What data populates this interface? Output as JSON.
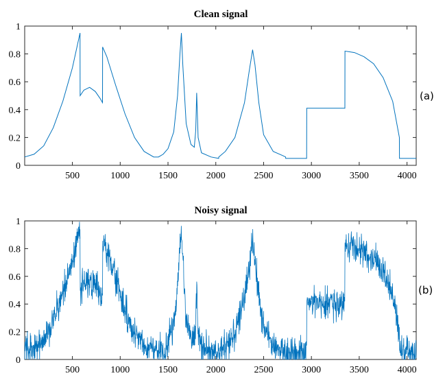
{
  "chart_data": [
    {
      "type": "line",
      "title": "Clean signal",
      "panel_label": "(a)",
      "xlabel": "",
      "ylabel": "",
      "xlim": [
        1,
        4096
      ],
      "ylim": [
        0,
        1
      ],
      "grid": false,
      "x_ticks": [
        500,
        1000,
        1500,
        2000,
        2500,
        3000,
        3500,
        4000
      ],
      "y_ticks": [
        0,
        0.2,
        0.4,
        0.6,
        0.8,
        1
      ],
      "y_tick_labels": [
        "0",
        "0.2",
        "0.4",
        "0.6",
        "0.8",
        "1"
      ],
      "color": "#0072BD",
      "series": [
        {
          "x": [
            1,
            100,
            200,
            300,
            400,
            500,
            580,
            581,
            620,
            680,
            740,
            790,
            815,
            816,
            860,
            950,
            1050,
            1150,
            1250,
            1350,
            1400,
            1450,
            1500,
            1560,
            1600,
            1625,
            1640,
            1655,
            1690,
            1740,
            1775,
            1790,
            1800,
            1815,
            1850,
            1950,
            2030,
            2031,
            2100,
            2200,
            2300,
            2350,
            2385,
            2410,
            2450,
            2500,
            2600,
            2700,
            2730,
            2731,
            2950,
            2951,
            3350,
            3351,
            3450,
            3550,
            3650,
            3750,
            3850,
            3920,
            3921,
            4096
          ],
          "y": [
            0.06,
            0.08,
            0.14,
            0.27,
            0.46,
            0.7,
            0.95,
            0.5,
            0.54,
            0.56,
            0.53,
            0.48,
            0.45,
            0.85,
            0.78,
            0.58,
            0.37,
            0.2,
            0.1,
            0.06,
            0.06,
            0.08,
            0.12,
            0.24,
            0.5,
            0.8,
            0.95,
            0.72,
            0.3,
            0.15,
            0.13,
            0.25,
            0.52,
            0.2,
            0.09,
            0.06,
            0.05,
            0.06,
            0.1,
            0.2,
            0.45,
            0.68,
            0.83,
            0.72,
            0.45,
            0.22,
            0.1,
            0.07,
            0.06,
            0.05,
            0.05,
            0.41,
            0.41,
            0.82,
            0.81,
            0.78,
            0.73,
            0.63,
            0.46,
            0.2,
            0.05,
            0.05
          ]
        }
      ]
    },
    {
      "type": "line",
      "title": "Noisy signal",
      "panel_label": "(b)",
      "xlabel": "",
      "ylabel": "",
      "xlim": [
        1,
        4096
      ],
      "ylim": [
        0,
        1
      ],
      "grid": false,
      "x_ticks": [
        500,
        1000,
        1500,
        2000,
        2500,
        3000,
        3500,
        4000
      ],
      "y_ticks": [
        0,
        0.2,
        0.4,
        0.6,
        0.8,
        1
      ],
      "y_tick_labels": [
        "0",
        "0.2",
        "0.4",
        "0.6",
        "0.8",
        "1"
      ],
      "color": "#0072BD",
      "noise_amplitude": 0.07,
      "series": [
        {
          "x": [
            1,
            100,
            200,
            300,
            400,
            500,
            580,
            581,
            620,
            680,
            740,
            790,
            815,
            816,
            860,
            950,
            1050,
            1150,
            1250,
            1350,
            1400,
            1450,
            1500,
            1560,
            1600,
            1625,
            1640,
            1655,
            1690,
            1740,
            1775,
            1790,
            1800,
            1815,
            1850,
            1950,
            2030,
            2031,
            2100,
            2200,
            2300,
            2350,
            2385,
            2410,
            2450,
            2500,
            2600,
            2700,
            2730,
            2731,
            2950,
            2951,
            3350,
            3351,
            3450,
            3550,
            3650,
            3750,
            3850,
            3920,
            3921,
            4096
          ],
          "y": [
            0.06,
            0.08,
            0.14,
            0.27,
            0.46,
            0.7,
            0.95,
            0.5,
            0.54,
            0.56,
            0.53,
            0.48,
            0.45,
            0.85,
            0.78,
            0.58,
            0.37,
            0.2,
            0.1,
            0.06,
            0.06,
            0.08,
            0.12,
            0.24,
            0.5,
            0.8,
            0.95,
            0.72,
            0.3,
            0.15,
            0.13,
            0.25,
            0.52,
            0.2,
            0.09,
            0.06,
            0.05,
            0.06,
            0.1,
            0.2,
            0.45,
            0.68,
            0.83,
            0.72,
            0.45,
            0.22,
            0.1,
            0.07,
            0.06,
            0.05,
            0.05,
            0.41,
            0.41,
            0.82,
            0.81,
            0.78,
            0.73,
            0.63,
            0.46,
            0.2,
            0.05,
            0.05
          ]
        }
      ]
    }
  ]
}
